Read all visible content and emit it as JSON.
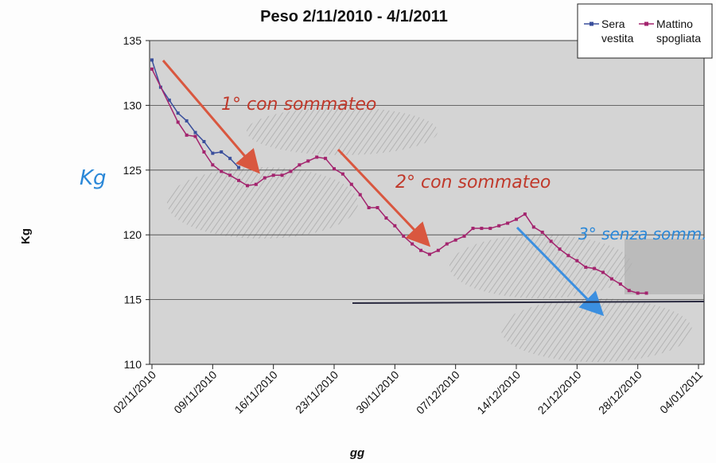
{
  "chart_data": {
    "type": "line",
    "title": "Peso 2/11/2010 - 4/1/2011",
    "xlabel": "gg",
    "ylabel": "Kg",
    "ylim": [
      110,
      135
    ],
    "yticks": [
      "110",
      "115",
      "120",
      "125",
      "130",
      "135"
    ],
    "xticks": [
      "02/11/2010",
      "09/11/2010",
      "16/11/2010",
      "23/11/2010",
      "30/11/2010",
      "07/12/2010",
      "14/12/2010",
      "21/12/2010",
      "28/12/2010",
      "04/01/2011"
    ],
    "xlim_days": [
      0,
      63
    ],
    "grid": "horizontal",
    "legend_position": "top-right",
    "series": [
      {
        "name": "Sera vestita",
        "color": "#3a4f9c",
        "points": [
          [
            0,
            133.5
          ],
          [
            1,
            131.4
          ],
          [
            2,
            130.4
          ],
          [
            3,
            129.4
          ],
          [
            4,
            128.8
          ],
          [
            5,
            127.9
          ],
          [
            6,
            127.2
          ],
          [
            7,
            126.3
          ],
          [
            8,
            126.4
          ],
          [
            9,
            125.9
          ],
          [
            10,
            125.2
          ]
        ]
      },
      {
        "name": "Mattino spogliata",
        "color": "#a3246e",
        "points": [
          [
            0,
            132.8
          ],
          [
            3,
            128.7
          ],
          [
            4,
            127.7
          ],
          [
            5,
            127.6
          ],
          [
            6,
            126.4
          ],
          [
            7,
            125.4
          ],
          [
            8,
            124.9
          ],
          [
            9,
            124.6
          ],
          [
            10,
            124.2
          ],
          [
            11,
            123.8
          ],
          [
            12,
            123.9
          ],
          [
            13,
            124.4
          ],
          [
            14,
            124.6
          ],
          [
            15,
            124.6
          ],
          [
            16,
            124.9
          ],
          [
            17,
            125.4
          ],
          [
            18,
            125.7
          ],
          [
            19,
            126.0
          ],
          [
            20,
            125.9
          ],
          [
            21,
            125.1
          ],
          [
            22,
            124.7
          ],
          [
            23,
            123.9
          ],
          [
            24,
            123.1
          ],
          [
            25,
            122.1
          ],
          [
            26,
            122.1
          ],
          [
            27,
            121.3
          ],
          [
            28,
            120.7
          ],
          [
            29,
            119.9
          ],
          [
            30,
            119.3
          ],
          [
            31,
            118.8
          ],
          [
            32,
            118.5
          ],
          [
            33,
            118.8
          ],
          [
            34,
            119.3
          ],
          [
            35,
            119.6
          ],
          [
            36,
            119.9
          ],
          [
            37,
            120.5
          ],
          [
            38,
            120.5
          ],
          [
            39,
            120.5
          ],
          [
            40,
            120.7
          ],
          [
            41,
            120.9
          ],
          [
            42,
            121.2
          ],
          [
            43,
            121.6
          ],
          [
            44,
            120.6
          ],
          [
            45,
            120.2
          ],
          [
            46,
            119.5
          ],
          [
            47,
            118.9
          ],
          [
            48,
            118.4
          ],
          [
            49,
            118.0
          ],
          [
            50,
            117.5
          ],
          [
            51,
            117.4
          ],
          [
            52,
            117.1
          ],
          [
            53,
            116.6
          ],
          [
            54,
            116.2
          ],
          [
            55,
            115.7
          ],
          [
            56,
            115.5
          ],
          [
            57,
            115.5
          ]
        ]
      }
    ],
    "annotations": [
      {
        "text": "1° con sommateo",
        "color": "#c0392b"
      },
      {
        "text": "2° con sommateo",
        "color": "#c0392b"
      },
      {
        "text": "3° senza somm.",
        "color": "#2b88d8"
      },
      {
        "text": "Kg",
        "color": "#2b88d8"
      }
    ]
  }
}
